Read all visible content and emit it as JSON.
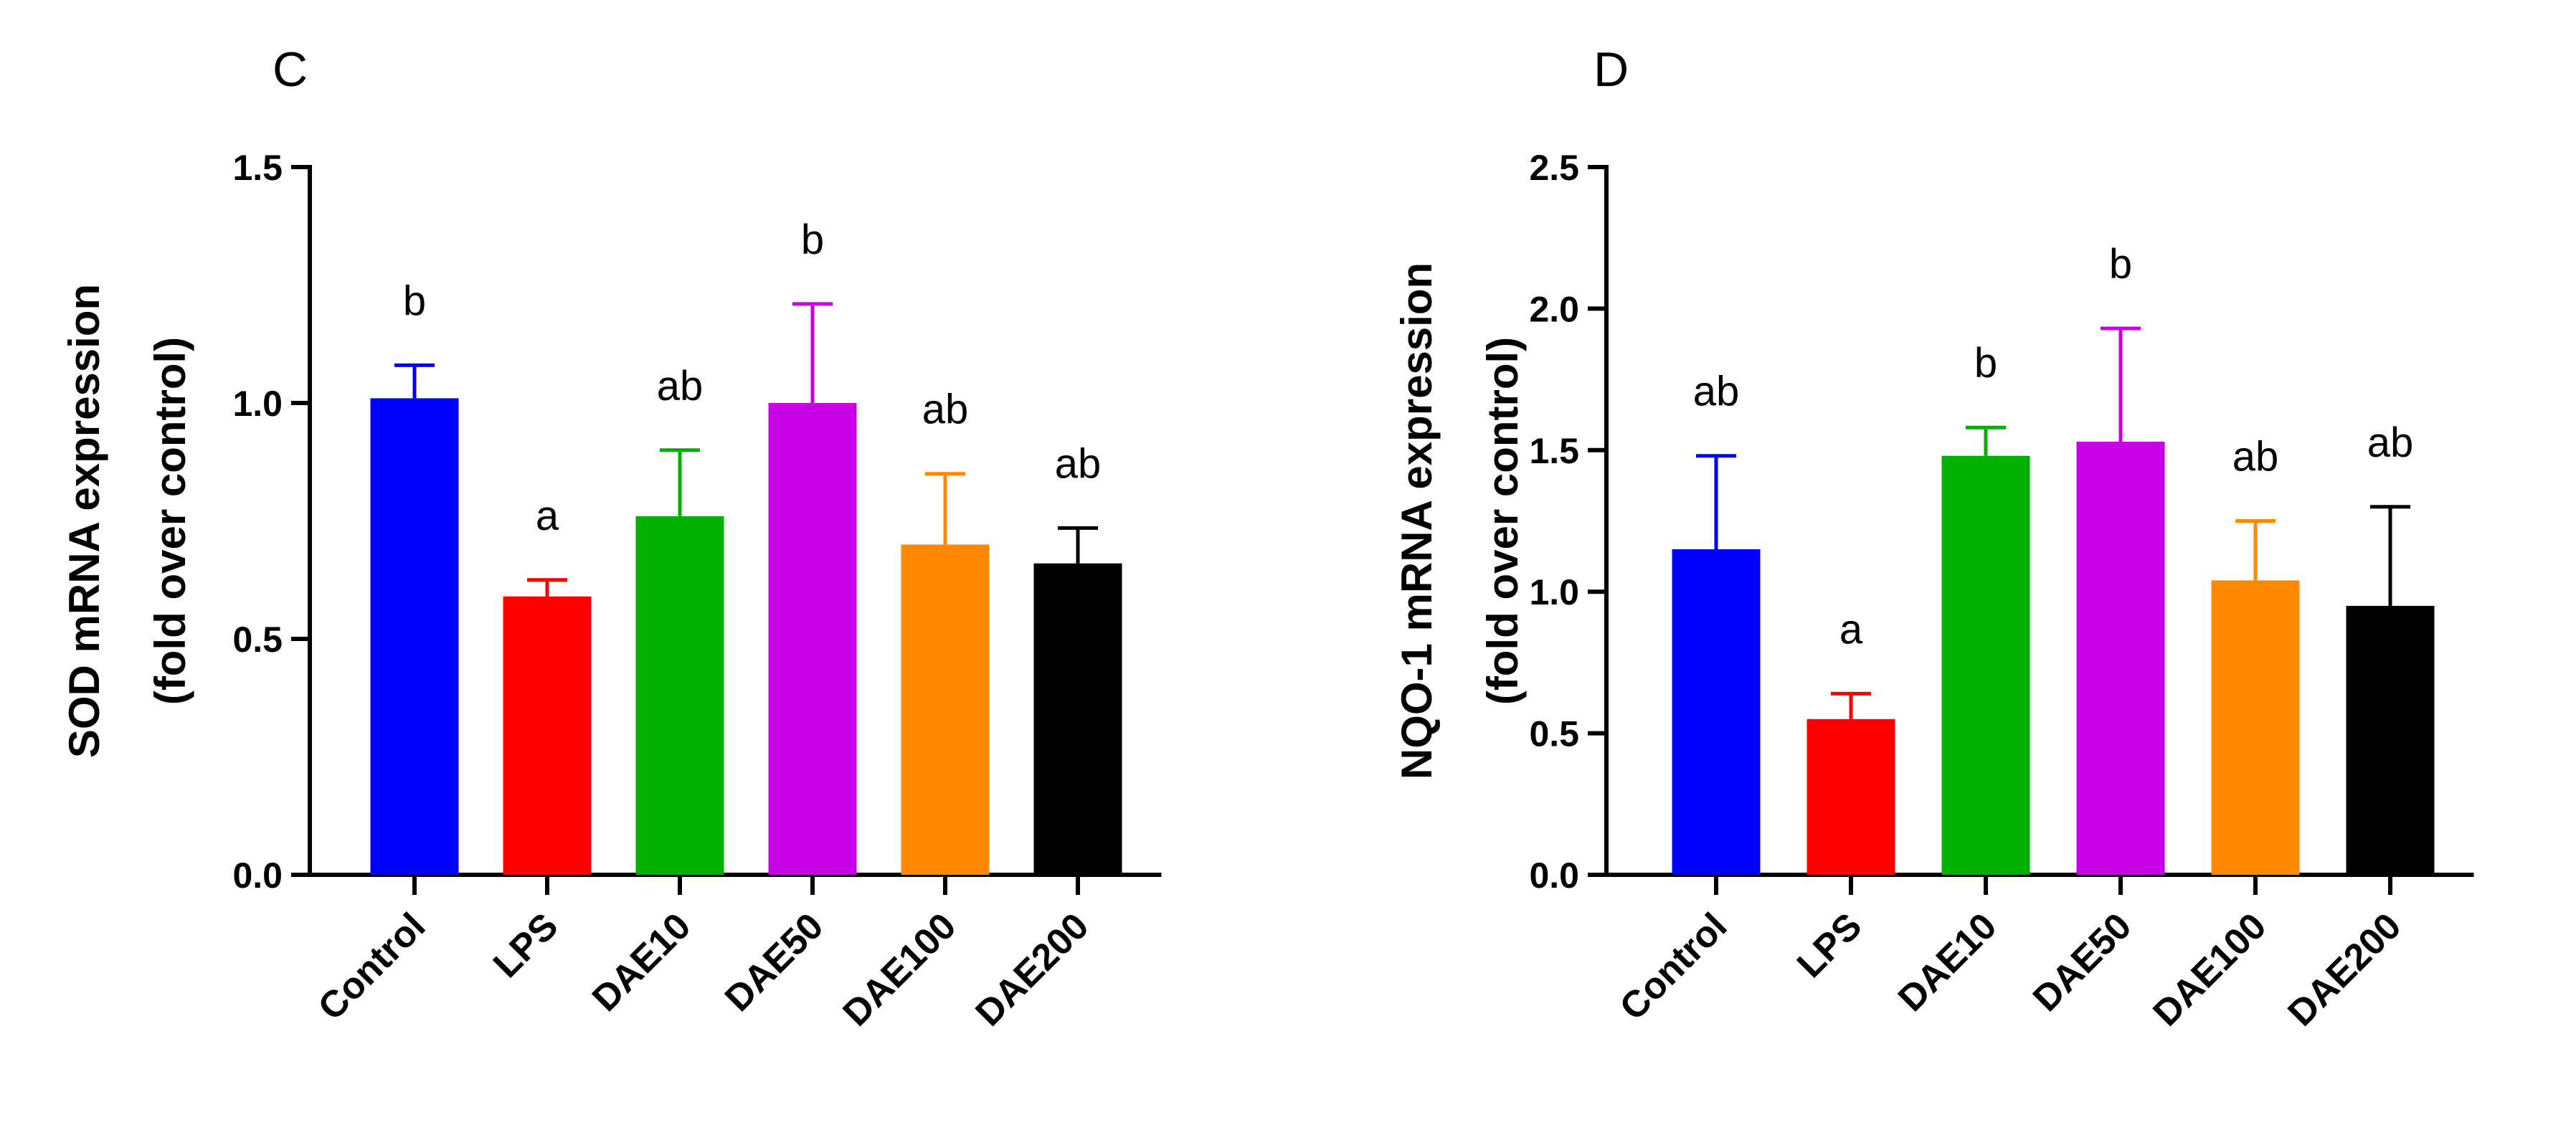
{
  "chart_data": [
    {
      "type": "bar",
      "panel": "C",
      "title": "",
      "ylabel_line1": "SOD mRNA expression",
      "ylabel_line2": "(fold over control)",
      "xlabel": "",
      "ylim": [
        0,
        1.5
      ],
      "yticks": [
        0,
        0.5,
        1.0,
        1.5
      ],
      "ytick_labels": [
        "0.0",
        "0.5",
        "1.0",
        "1.5"
      ],
      "categories": [
        "Control",
        "LPS",
        "DAE10",
        "DAE50",
        "DAE100",
        "DAE200"
      ],
      "values": [
        1.01,
        0.59,
        0.76,
        1.0,
        0.7,
        0.66
      ],
      "errors": [
        0.07,
        0.035,
        0.14,
        0.21,
        0.15,
        0.075
      ],
      "colors": [
        "#0000FF",
        "#FF0000",
        "#00B000",
        "#C800E6",
        "#FF8800",
        "#000000"
      ],
      "letters": [
        "b",
        "a",
        "ab",
        "b",
        "ab",
        "ab"
      ]
    },
    {
      "type": "bar",
      "panel": "D",
      "title": "",
      "ylabel_line1": "NQO-1 mRNA expression",
      "ylabel_line2": "(fold over control)",
      "xlabel": "",
      "ylim": [
        0,
        2.5
      ],
      "yticks": [
        0,
        0.5,
        1.0,
        1.5,
        2.0,
        2.5
      ],
      "ytick_labels": [
        "0.0",
        "0.5",
        "1.0",
        "1.5",
        "2.0",
        "2.5"
      ],
      "categories": [
        "Control",
        "LPS",
        "DAE10",
        "DAE50",
        "DAE100",
        "DAE200"
      ],
      "values": [
        1.15,
        0.55,
        1.48,
        1.53,
        1.04,
        0.95
      ],
      "errors": [
        0.33,
        0.09,
        0.1,
        0.4,
        0.21,
        0.35
      ],
      "colors": [
        "#0000FF",
        "#FF0000",
        "#00B000",
        "#C800E6",
        "#FF8800",
        "#000000"
      ],
      "letters": [
        "ab",
        "a",
        "b",
        "b",
        "ab",
        "ab"
      ]
    }
  ]
}
